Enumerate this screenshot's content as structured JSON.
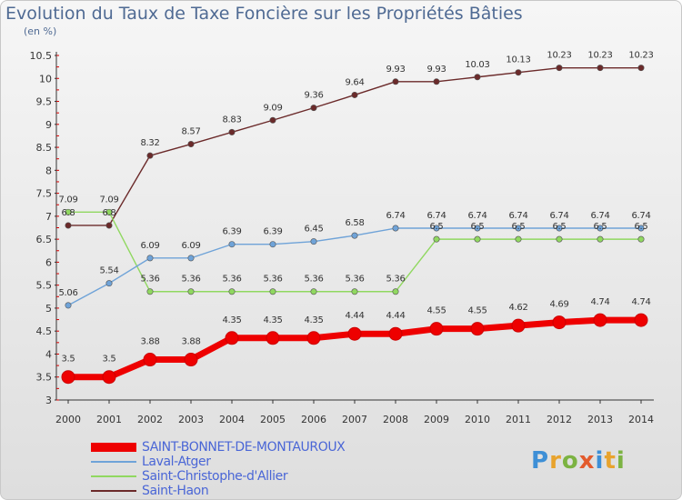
{
  "page": {
    "title": "Evolution du Taux de Taxe Foncière sur les Propriétés Bâties",
    "unit": "(en %)"
  },
  "chart_data": {
    "type": "line",
    "title": "Evolution du Taux de Taxe Foncière sur les Propriétés Bâties",
    "ylabel": "(en %)",
    "xlabel": "",
    "x": [
      "2000",
      "2001",
      "2002",
      "2003",
      "2004",
      "2005",
      "2006",
      "2007",
      "2008",
      "2009",
      "2010",
      "2011",
      "2012",
      "2013",
      "2014"
    ],
    "ylim": [
      3,
      10.5
    ],
    "yticks": [
      "3",
      "3.5",
      "4",
      "4.5",
      "5",
      "5.5",
      "6",
      "6.5",
      "7",
      "7.5",
      "8",
      "8.5",
      "9",
      "9.5",
      "10",
      "10.5"
    ],
    "grid": false,
    "legend_position": "bottom-left",
    "series": [
      {
        "name": "SAINT-BONNET-DE-MONTAUROUX",
        "color": "#ee0000",
        "values": [
          3.5,
          3.5,
          3.88,
          3.88,
          4.35,
          4.35,
          4.35,
          4.44,
          4.44,
          4.55,
          4.55,
          4.62,
          4.69,
          4.74,
          4.74
        ],
        "labels": [
          "3.5",
          "3.5",
          "3.88",
          "3.88",
          "4.35",
          "4.35",
          "4.35",
          "4.44",
          "4.44",
          "4.55",
          "4.55",
          "4.62",
          "4.69",
          "4.74",
          "4.74"
        ]
      },
      {
        "name": "Laval-Atger",
        "color": "#6fa3d8",
        "values": [
          5.06,
          5.54,
          6.09,
          6.09,
          6.39,
          6.39,
          6.45,
          6.58,
          6.74,
          6.74,
          6.74,
          6.74,
          6.74,
          6.74,
          6.74
        ],
        "labels": [
          "5.06",
          "5.54",
          "6.09",
          "6.09",
          "6.39",
          "6.39",
          "6.45",
          "6.58",
          "6.74",
          "6.74",
          "6.74",
          "6.74",
          "6.74",
          "6.74",
          "6.74"
        ]
      },
      {
        "name": "Saint-Christophe-d'Allier",
        "color": "#90d860",
        "values": [
          7.09,
          7.09,
          5.36,
          5.36,
          5.36,
          5.36,
          5.36,
          5.36,
          5.36,
          6.5,
          6.5,
          6.5,
          6.5,
          6.5,
          6.5
        ],
        "labels": [
          "7.09",
          "7.09",
          "5.36",
          "5.36",
          "5.36",
          "5.36",
          "5.36",
          "5.36",
          "5.36",
          "6.5",
          "6.5",
          "6.5",
          "6.5",
          "6.5",
          "6.5"
        ]
      },
      {
        "name": "Saint-Haon",
        "color": "#6b2a2a",
        "values": [
          6.8,
          6.8,
          8.32,
          8.57,
          8.83,
          9.09,
          9.36,
          9.64,
          9.93,
          9.93,
          10.03,
          10.13,
          10.23,
          10.23,
          10.23
        ],
        "labels": [
          "6.8",
          "6.8",
          "8.32",
          "8.57",
          "8.83",
          "9.09",
          "9.36",
          "9.64",
          "9.93",
          "9.93",
          "10.03",
          "10.13",
          "10.23",
          "10.23",
          "10.23"
        ]
      }
    ]
  },
  "logo": {
    "text": [
      "P",
      "r",
      "o",
      "x",
      "i",
      "t",
      "i"
    ]
  }
}
